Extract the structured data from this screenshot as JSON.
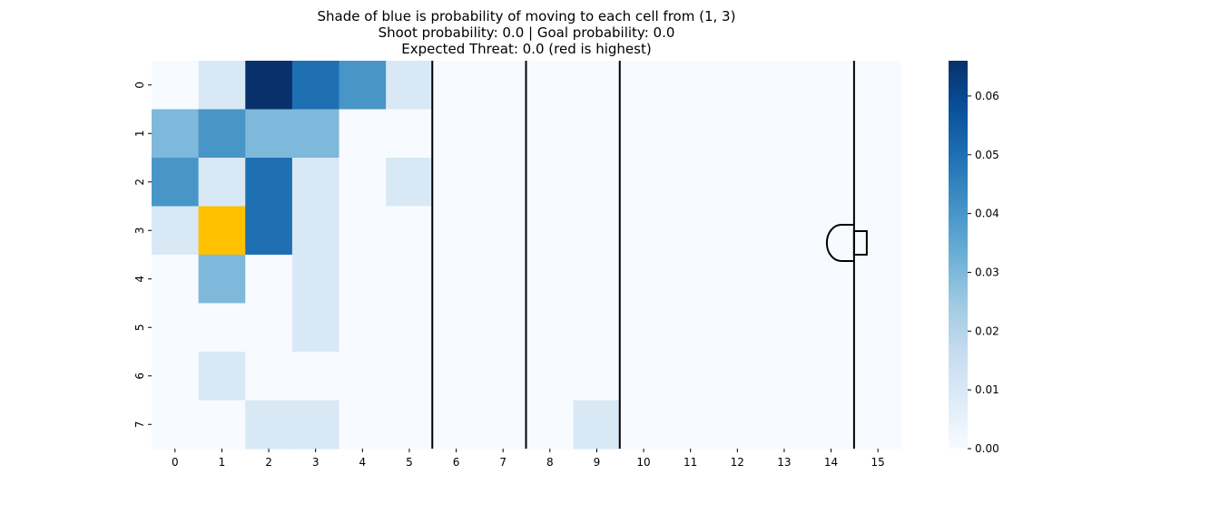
{
  "chart_data": {
    "type": "heatmap",
    "title": [
      "Shade of blue is probability of moving to each cell from (1, 3)",
      "Shoot probability: 0.0 | Goal probability: 0.0",
      "Expected Threat: 0.0 (red is highest)"
    ],
    "xlabel": "",
    "ylabel": "",
    "x_categories": [
      "0",
      "1",
      "2",
      "3",
      "4",
      "5",
      "6",
      "7",
      "8",
      "9",
      "10",
      "11",
      "12",
      "13",
      "14",
      "15"
    ],
    "y_categories": [
      "0",
      "1",
      "2",
      "3",
      "4",
      "5",
      "6",
      "7"
    ],
    "values": [
      [
        0.0,
        0.01,
        0.066,
        0.05,
        0.04,
        0.01,
        0,
        0,
        0,
        0,
        0,
        0,
        0,
        0,
        0,
        0
      ],
      [
        0.03,
        0.04,
        0.03,
        0.03,
        0.0,
        0.0,
        0,
        0,
        0,
        0,
        0,
        0,
        0,
        0,
        0,
        0
      ],
      [
        0.04,
        0.01,
        0.05,
        0.01,
        0.0,
        0.01,
        0,
        0,
        0,
        0,
        0,
        0,
        0,
        0,
        0,
        0
      ],
      [
        0.01,
        0.0,
        0.05,
        0.01,
        0.0,
        0.0,
        0,
        0,
        0,
        0,
        0,
        0,
        0,
        0,
        0,
        0
      ],
      [
        0.0,
        0.03,
        0.0,
        0.01,
        0.0,
        0.0,
        0,
        0,
        0,
        0,
        0,
        0,
        0,
        0,
        0,
        0
      ],
      [
        0.0,
        0.0,
        0.0,
        0.01,
        0.0,
        0.0,
        0,
        0,
        0,
        0,
        0,
        0,
        0,
        0,
        0,
        0
      ],
      [
        0.0,
        0.01,
        0.0,
        0.0,
        0.0,
        0.0,
        0,
        0,
        0,
        0,
        0,
        0,
        0,
        0,
        0,
        0
      ],
      [
        0.0,
        0.0,
        0.01,
        0.01,
        0.0,
        0.0,
        0,
        0,
        0,
        0.01,
        0,
        0,
        0,
        0,
        0,
        0
      ]
    ],
    "highlight_cell": {
      "row": 3,
      "col": 1,
      "color": "#ffc000"
    },
    "colorbar": {
      "min": 0.0,
      "max": 0.066,
      "ticks": [
        "0.00",
        "0.01",
        "0.02",
        "0.03",
        "0.04",
        "0.05",
        "0.06"
      ],
      "colormap": "Blues"
    },
    "vertical_lines_after_column": [
      5,
      7,
      9,
      14
    ],
    "goal_marker_column": 14,
    "grid": false
  }
}
